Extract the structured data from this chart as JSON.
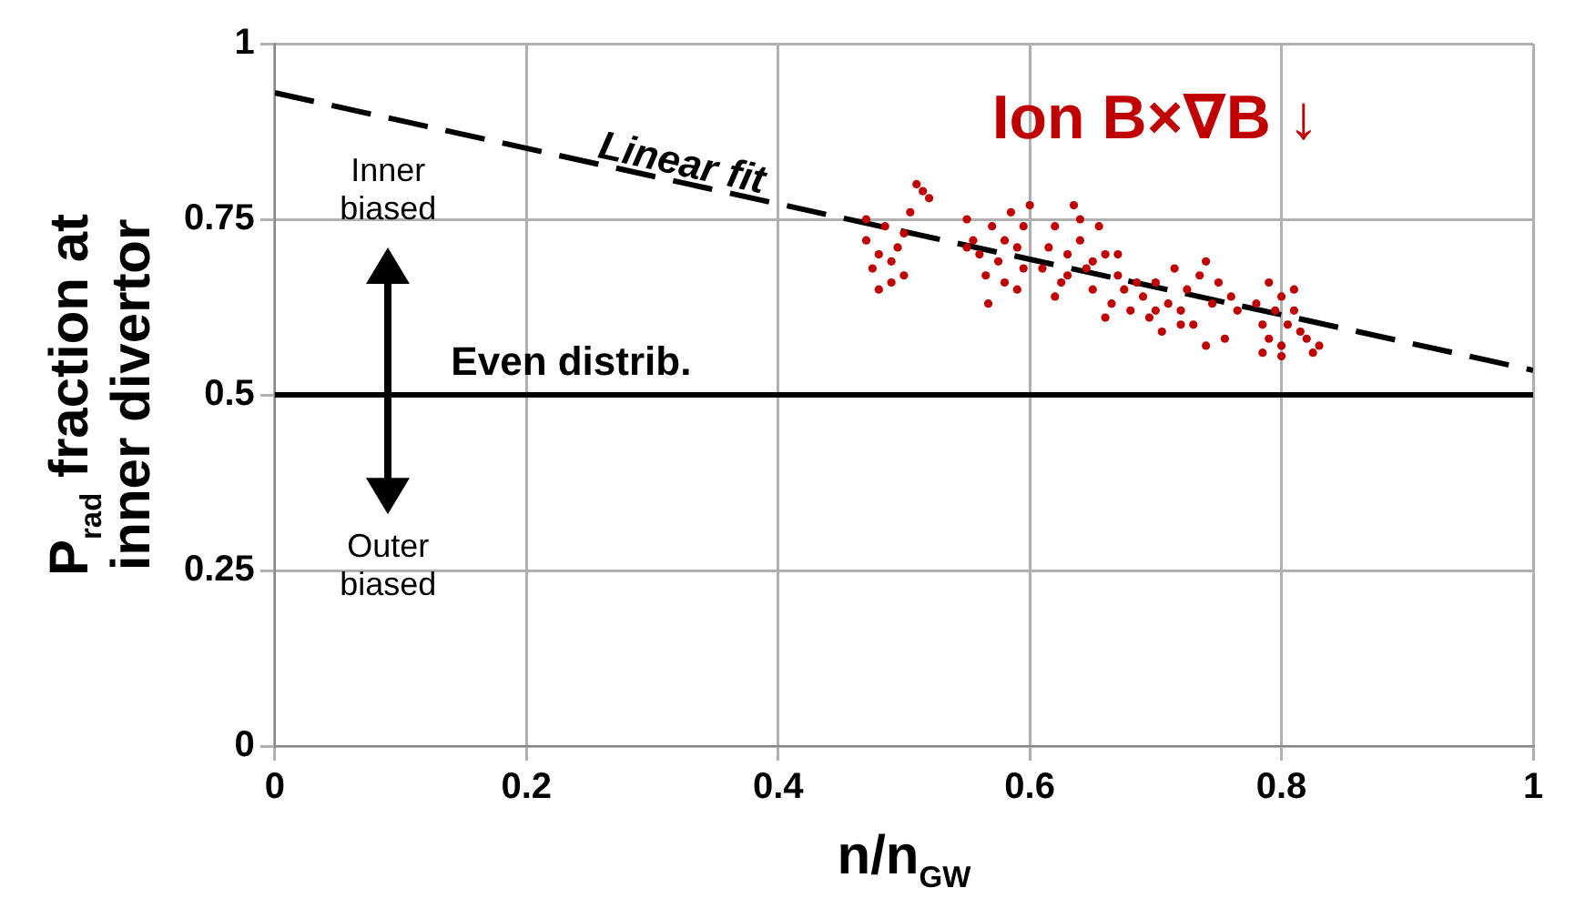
{
  "chart_data": {
    "type": "scatter",
    "xlabel": "n/n$_{GW}$",
    "ylabel": "P$_{rad}$ fraction at inner divertor",
    "xlim": [
      0,
      1
    ],
    "xticks": [
      0,
      0.2,
      0.4,
      0.6,
      0.8,
      1
    ],
    "ylim": [
      0,
      1
    ],
    "yticks": [
      0,
      0.25,
      0.5,
      0.75,
      1
    ],
    "grid": true,
    "legend": false,
    "series": [
      {
        "name": "Ion B×∇B ↓",
        "color": "#c00000",
        "marker": "circle",
        "x": [
          0.47,
          0.48,
          0.475,
          0.49,
          0.48,
          0.5,
          0.485,
          0.495,
          0.47,
          0.5,
          0.49,
          0.505,
          0.515,
          0.52,
          0.51,
          0.55,
          0.555,
          0.56,
          0.57,
          0.575,
          0.58,
          0.585,
          0.59,
          0.595,
          0.6,
          0.565,
          0.58,
          0.567,
          0.59,
          0.55,
          0.595,
          0.61,
          0.615,
          0.62,
          0.625,
          0.63,
          0.635,
          0.64,
          0.645,
          0.65,
          0.655,
          0.66,
          0.665,
          0.67,
          0.675,
          0.68,
          0.685,
          0.64,
          0.65,
          0.66,
          0.62,
          0.63,
          0.67,
          0.69,
          0.695,
          0.7,
          0.705,
          0.71,
          0.715,
          0.72,
          0.725,
          0.73,
          0.735,
          0.74,
          0.745,
          0.75,
          0.755,
          0.76,
          0.765,
          0.74,
          0.72,
          0.7,
          0.78,
          0.785,
          0.79,
          0.79,
          0.795,
          0.8,
          0.8,
          0.805,
          0.81,
          0.815,
          0.82,
          0.825,
          0.83,
          0.785,
          0.81,
          0.8
        ],
        "values": [
          0.72,
          0.7,
          0.68,
          0.66,
          0.65,
          0.67,
          0.74,
          0.71,
          0.75,
          0.73,
          0.69,
          0.76,
          0.79,
          0.78,
          0.8,
          0.75,
          0.72,
          0.7,
          0.74,
          0.69,
          0.72,
          0.76,
          0.71,
          0.68,
          0.77,
          0.67,
          0.66,
          0.63,
          0.65,
          0.71,
          0.74,
          0.68,
          0.71,
          0.74,
          0.66,
          0.7,
          0.77,
          0.72,
          0.68,
          0.65,
          0.74,
          0.7,
          0.63,
          0.67,
          0.65,
          0.62,
          0.66,
          0.75,
          0.69,
          0.61,
          0.64,
          0.67,
          0.7,
          0.64,
          0.61,
          0.66,
          0.59,
          0.63,
          0.68,
          0.62,
          0.65,
          0.6,
          0.67,
          0.69,
          0.63,
          0.66,
          0.58,
          0.64,
          0.62,
          0.57,
          0.6,
          0.62,
          0.63,
          0.6,
          0.66,
          0.58,
          0.62,
          0.64,
          0.57,
          0.6,
          0.62,
          0.59,
          0.58,
          0.56,
          0.57,
          0.56,
          0.65,
          0.555
        ]
      },
      {
        "type": "line",
        "color": "#000000",
        "marker": "none",
        "line_style": "dashed",
        "x": [
          0,
          1
        ],
        "values": [
          0.93,
          0.535
        ]
      }
    ],
    "ref_lines": [
      {
        "axis": "y",
        "value": 0.5,
        "label": "Even distrib.",
        "color": "#000000",
        "line_style": "solid"
      }
    ],
    "annotations": [
      {
        "text": "Linear fit",
        "x": 0.32,
        "y": 0.8
      },
      "Inner biased",
      "Outer biased"
    ]
  }
}
